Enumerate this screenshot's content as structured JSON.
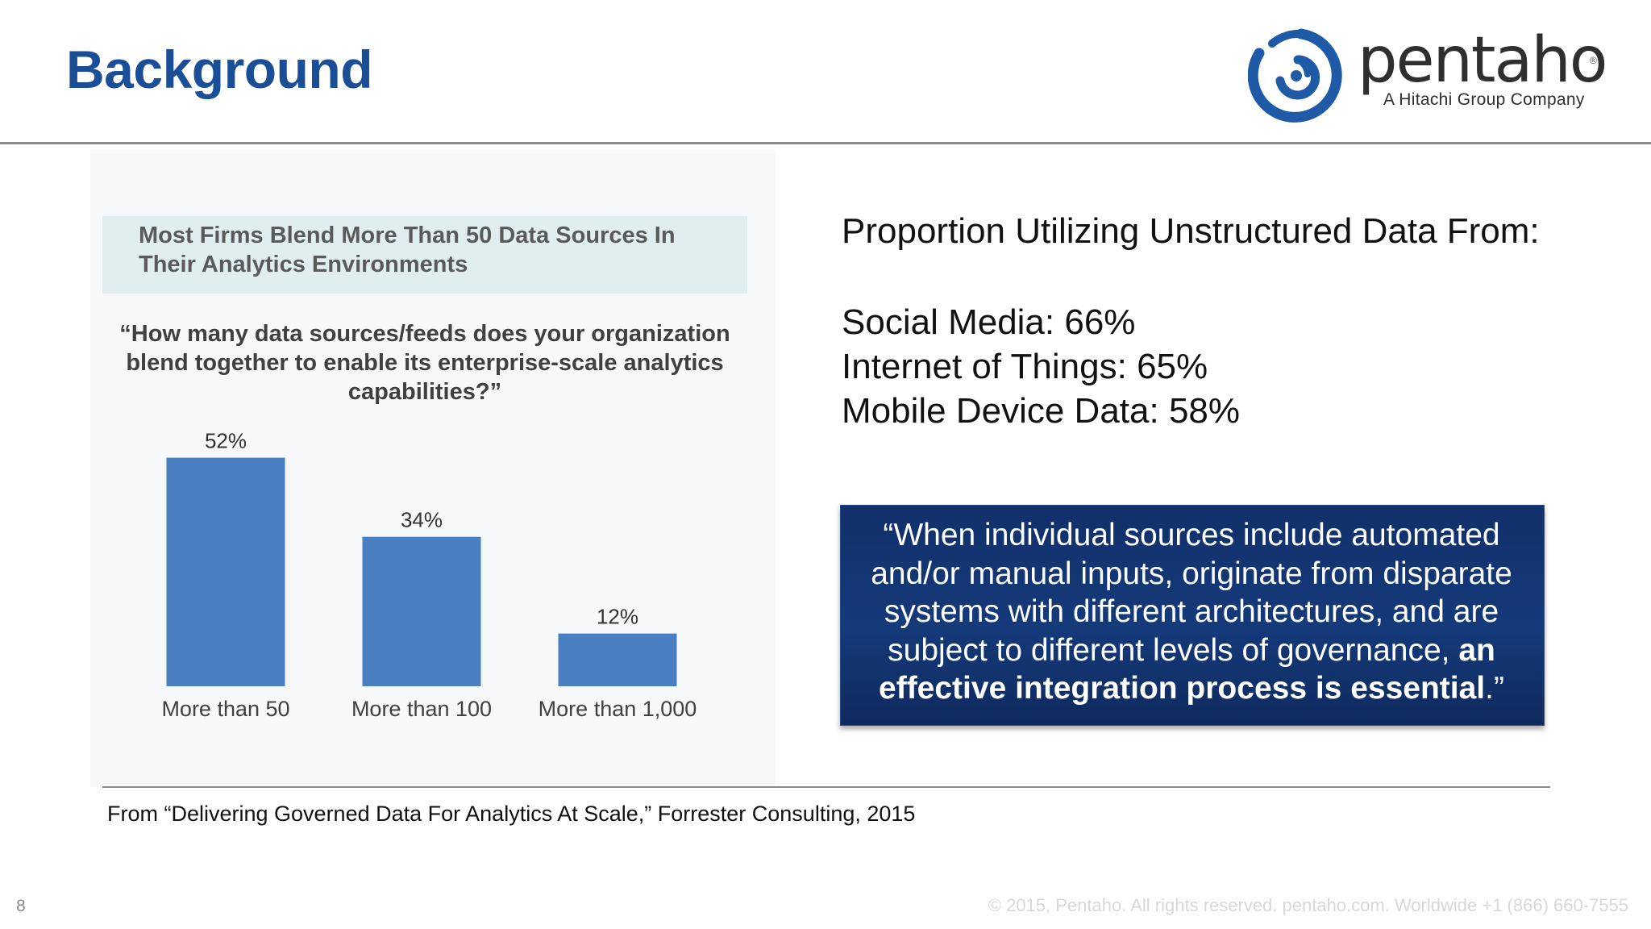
{
  "slide": {
    "title": "Background",
    "page_number": "8",
    "copyright": "© 2015, Pentaho. All rights reserved. pentaho.com. Worldwide +1 (866) 660-7555"
  },
  "logo": {
    "wordmark": "pentaho",
    "registered": "®",
    "tagline": "A Hitachi Group Company",
    "icon": "pentaho-spiral-icon",
    "color": "#1f5aa6"
  },
  "figure": {
    "header": "Most Firms Blend More Than 50 Data Sources In Their Analytics Environments",
    "question": "“How many data sources/feeds does your organization blend together to enable its enterprise-scale analytics capabilities?”"
  },
  "chart_data": {
    "type": "bar",
    "categories": [
      "More than 50",
      "More than 100",
      "More than 1,000"
    ],
    "values": [
      52,
      34,
      12
    ],
    "value_labels": [
      "52%",
      "34%",
      "12%"
    ],
    "bar_color": "#4a7fc1",
    "title": "",
    "xlabel": "",
    "ylabel": "",
    "ylim": [
      0,
      60
    ],
    "grid": false
  },
  "stats": {
    "heading": "Proportion Utilizing Unstructured Data From:",
    "items": [
      "Social Media: 66%",
      "Internet of Things: 65%",
      "Mobile Device Data: 58%"
    ]
  },
  "quote": {
    "text": "“When individual sources include automated and/or manual inputs, originate from disparate systems with different architectures, and are subject to different levels of governance, ",
    "emphasis": "an effective integration process is essential",
    "closing": ".”"
  },
  "source": {
    "text": "From  “Delivering Governed Data For Analytics At Scale,”  Forrester Consulting, 2015"
  }
}
